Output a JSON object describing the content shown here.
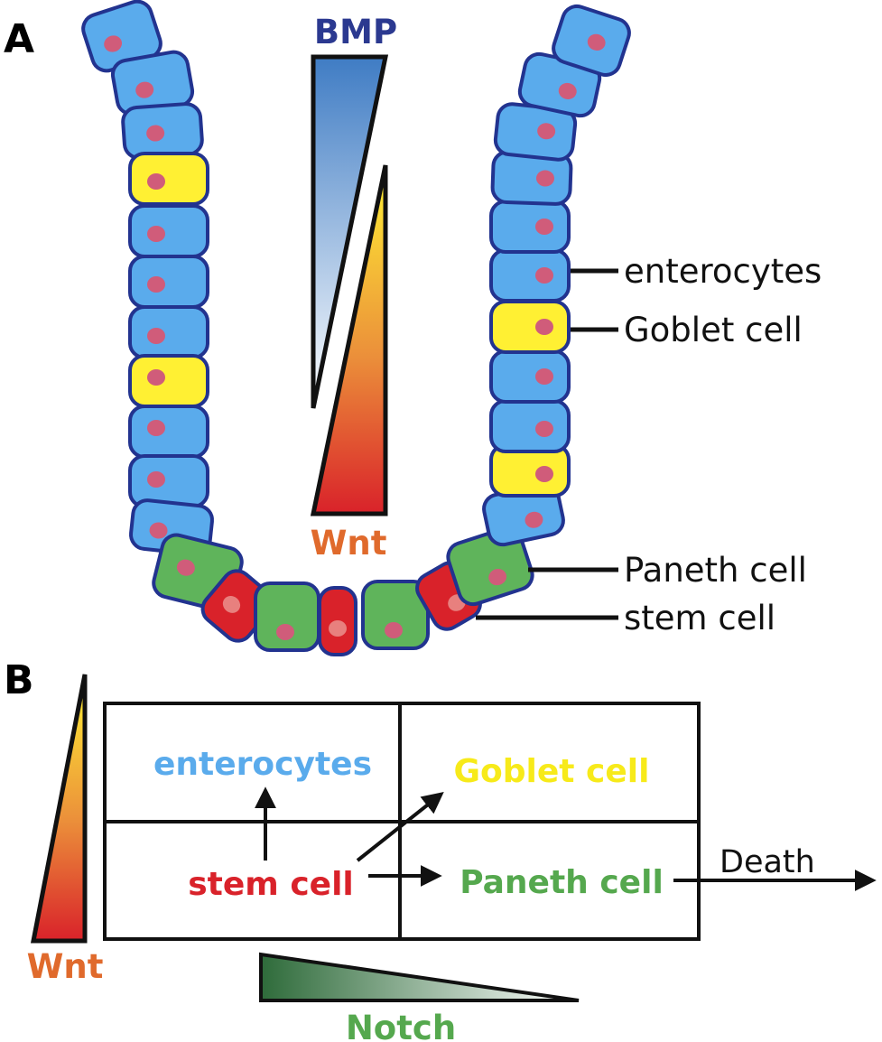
{
  "panel_a": {
    "label": "A",
    "bmp_label": "BMP",
    "wnt_label": "Wnt",
    "callouts": {
      "enterocytes": "enterocytes",
      "goblet": "Goblet cell",
      "paneth": "Paneth cell",
      "stem": "stem cell"
    }
  },
  "panel_b": {
    "label": "B",
    "enterocytes": "enterocytes",
    "goblet": "Goblet cell",
    "stem": "stem cell",
    "paneth": "Paneth cell",
    "death": "Death",
    "wnt_label": "Wnt",
    "notch_label": "Notch"
  },
  "colors": {
    "enterocyte": "#5aabec",
    "goblet": "#fff033",
    "paneth": "#5fb45b",
    "stem": "#d9222a",
    "nucleus": "#d05c7a",
    "outline": "#22338f",
    "bmp_text": "#2b3990",
    "wnt_text": "#e06a2c",
    "notch_text": "#55a84e"
  }
}
